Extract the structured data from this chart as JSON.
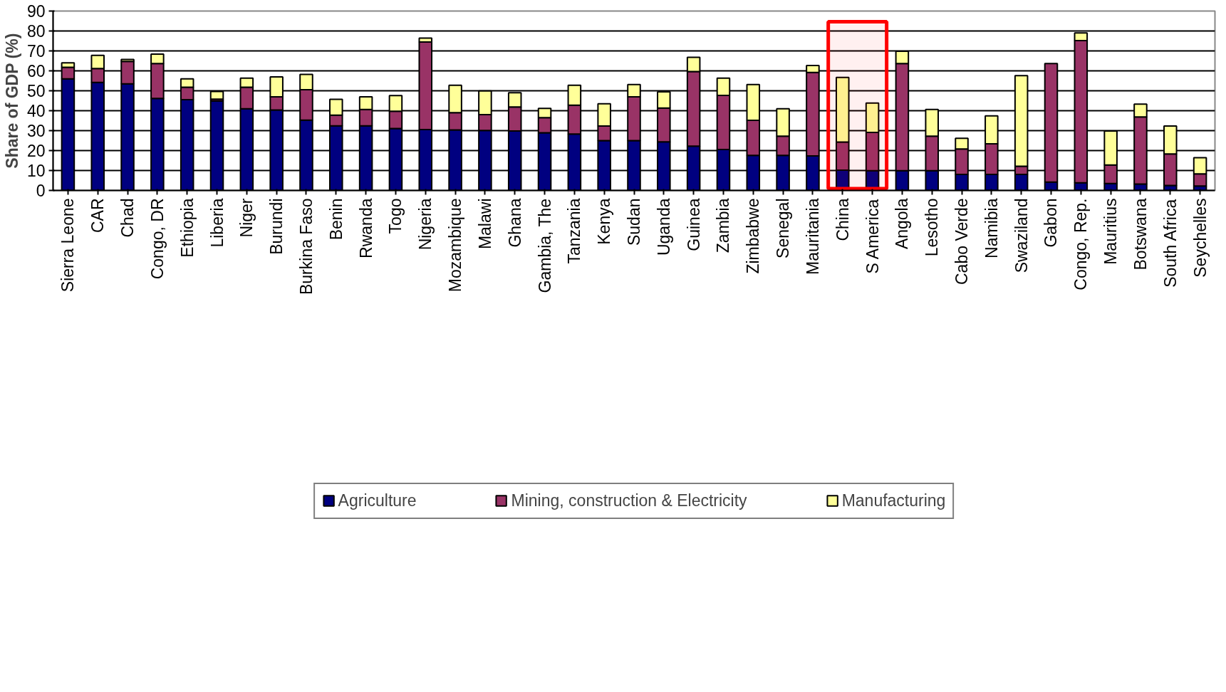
{
  "chart_data": {
    "type": "bar",
    "stacked": true,
    "ylabel": "Share of GDP (%)",
    "categories": [
      "Sierra Leone",
      "CAR",
      "Chad",
      "Congo, DR",
      "Ethiopia",
      "Liberia",
      "Niger",
      "Burundi",
      "Burkina Faso",
      "Benin",
      "Rwanda",
      "Togo",
      "Nigeria",
      "Mozambique",
      "Malawi",
      "Ghana",
      "Gambia, The",
      "Tanzania",
      "Kenya",
      "Sudan",
      "Uganda",
      "Guinea",
      "Zambia",
      "Zimbabwe",
      "Senegal",
      "Mauritania",
      "China",
      "S America",
      "Angola",
      "Lesotho",
      "Cabo Verde",
      "Namibia",
      "Swaziland",
      "Gabon",
      "Congo, Rep.",
      "Mauritius",
      "Botswana",
      "South Africa",
      "Seychelles"
    ],
    "series": [
      {
        "name": "Agriculture",
        "color": "#000080",
        "values": [
          56,
          54.2,
          53.5,
          46.2,
          45.5,
          44.9,
          41,
          40.4,
          35.3,
          32.4,
          32.4,
          31.1,
          30.5,
          30.4,
          30.1,
          29.8,
          28.9,
          28.3,
          25,
          25,
          24.4,
          22.2,
          20.5,
          17.6,
          17.6,
          17.3,
          10.2,
          9.9,
          9.9,
          9.9,
          8,
          8,
          8,
          4.2,
          3.8,
          3.5,
          3.2,
          2.5,
          2.2
        ]
      },
      {
        "name": "Mining, construction & Electricity",
        "color": "#993366",
        "values": [
          5.8,
          7,
          11.2,
          17.5,
          6.3,
          0.9,
          10.8,
          6.6,
          15.2,
          5.4,
          8.2,
          8.6,
          44,
          8.6,
          7.9,
          12.1,
          7.6,
          14.5,
          7.3,
          22,
          16.9,
          37.4,
          27.2,
          17.6,
          9.6,
          41.9,
          14.1,
          19.2,
          53.8,
          17.3,
          12.8,
          15.4,
          4.1,
          59.5,
          71.4,
          9.3,
          33.7,
          15.8,
          6.1
        ]
      },
      {
        "name": "Manufacturing",
        "color": "#ffff99",
        "values": [
          2.2,
          6.6,
          1,
          4.7,
          4.2,
          3.8,
          4.5,
          10,
          7.7,
          7.9,
          6.4,
          7.9,
          1.9,
          13.8,
          11.9,
          7.1,
          4.7,
          10,
          11.2,
          6.1,
          8.2,
          7.2,
          8.6,
          17.9,
          13.8,
          3.5,
          32.4,
          14.7,
          6.1,
          13.4,
          5.4,
          14,
          45.5,
          null,
          3.8,
          17,
          6.4,
          14,
          8.1
        ]
      }
    ],
    "ylim": [
      0,
      90
    ],
    "yticks": [
      0,
      10,
      20,
      30,
      40,
      50,
      60,
      70,
      80,
      90
    ],
    "grid": "y",
    "legend": "bottom",
    "bands": [
      {
        "axis": "x",
        "from": "China",
        "to": "S America",
        "color": "#ff0000"
      }
    ]
  }
}
